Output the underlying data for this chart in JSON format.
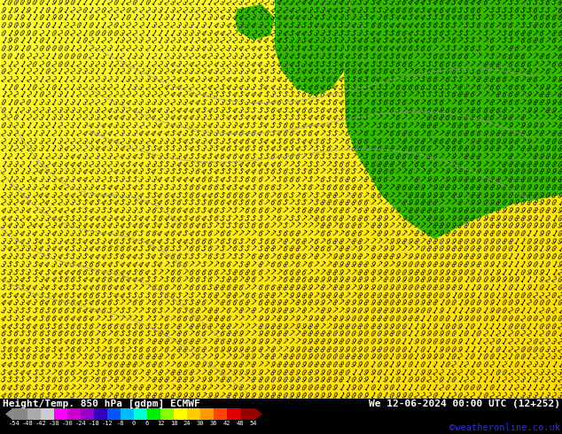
{
  "title_left": "Height/Temp. 850 hPa [gdpm] ECMWF",
  "title_right": "We 12-06-2024 00:00 UTC (12+252)",
  "credit": "©weatheronline.co.uk",
  "tick_labels": [
    "-54",
    "-48",
    "-42",
    "-38",
    "-30",
    "-24",
    "-18",
    "-12",
    "-8",
    "0",
    "6",
    "12",
    "18",
    "24",
    "30",
    "36",
    "42",
    "48",
    "54"
  ],
  "cbar_colors": [
    "#888888",
    "#aaaaaa",
    "#cccccc",
    "#ff00ff",
    "#cc00cc",
    "#9900cc",
    "#3300bb",
    "#0055ff",
    "#00bbff",
    "#00ffcc",
    "#00ee00",
    "#88ff00",
    "#ffff00",
    "#ffcc00",
    "#ff9900",
    "#ff4400",
    "#dd0000",
    "#990000"
  ],
  "map_yellow": "#ffff33",
  "map_yellow2": "#ffdd00",
  "map_green": "#33bb00",
  "map_bg": "#000000",
  "text_color": "#ffffff",
  "credit_color": "#3333cc",
  "digit_fontsize": 5.5,
  "digit_color": "#000000",
  "digit_rotation": -32,
  "cols": 90,
  "rows": 52,
  "contour_color": "#aaaaaa",
  "contour_alpha": 0.7
}
